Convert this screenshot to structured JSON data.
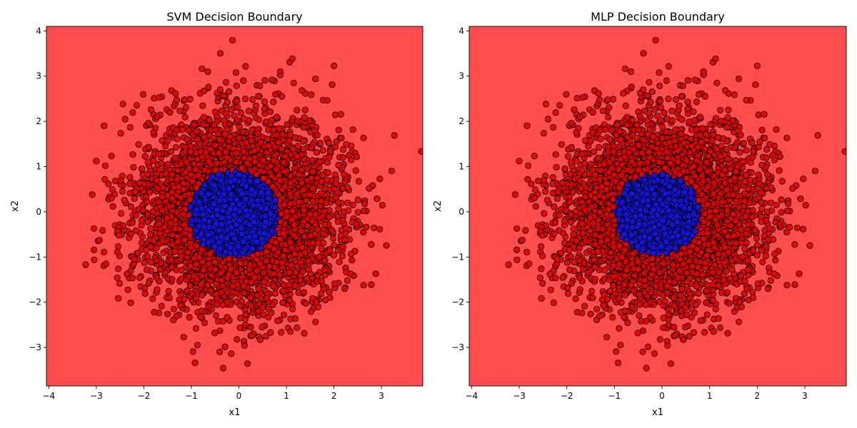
{
  "chart_data": [
    {
      "type": "scatter",
      "title": "SVM Decision Boundary",
      "xlabel": "x1",
      "ylabel": "x2",
      "xlim": [
        -4.05,
        3.87
      ],
      "ylim": [
        -3.85,
        4.1
      ],
      "xticks": [
        -4,
        -3,
        -2,
        -1,
        0,
        1,
        2,
        3
      ],
      "yticks": [
        -3,
        -2,
        -1,
        0,
        1,
        2,
        3,
        4
      ],
      "grid": false,
      "colors": {
        "outer_region": "#ff4d4d",
        "inner_region": "#0000ff",
        "outer_point": "#e60000",
        "inner_point": "#1515e0",
        "edge": "#000000"
      },
      "decision_region": {
        "inner_class": "blue",
        "center": [
          -0.1,
          -0.05
        ],
        "approx_radius": 1.0
      },
      "distribution": {
        "kind": "gaussian",
        "mean": [
          0,
          0
        ],
        "std": 1.0,
        "approx_points": 5000
      },
      "annotated_points": {
        "x": [
          0.87,
          2.88,
          -3.05,
          -3.05,
          -2.68,
          -2.65,
          -2.6,
          -2.55,
          -2.52,
          2.65,
          2.62,
          2.48,
          2.38,
          2.35,
          2.32,
          0.45,
          -0.4,
          0.25,
          -1.5,
          -1.78,
          1.82,
          -2.2,
          1.65,
          -1.45,
          2.1
        ],
        "y": [
          3.1,
          -1.37,
          -0.37,
          -0.84,
          0.3,
          0.12,
          0.68,
          -0.44,
          -0.52,
          0.18,
          -0.45,
          1.22,
          -1.07,
          -1.37,
          1.25,
          -2.83,
          -2.63,
          -2.55,
          -2.26,
          -2.22,
          -1.95,
          -1.05,
          1.7,
          2.2,
          1.81
        ]
      }
    },
    {
      "type": "scatter",
      "title": "MLP Decision Boundary",
      "xlabel": "x1",
      "ylabel": "x2",
      "xlim": [
        -4.05,
        3.87
      ],
      "ylim": [
        -3.85,
        4.1
      ],
      "xticks": [
        -4,
        -3,
        -2,
        -1,
        0,
        1,
        2,
        3
      ],
      "yticks": [
        -3,
        -2,
        -1,
        0,
        1,
        2,
        3,
        4
      ],
      "grid": false,
      "colors": {
        "outer_region": "#ff4d4d",
        "inner_region": "#0000ff",
        "outer_point": "#e60000",
        "inner_point": "#1515e0",
        "edge": "#000000"
      },
      "decision_region": {
        "inner_class": "blue",
        "center": [
          -0.1,
          -0.05
        ],
        "approx_radius": 0.95
      },
      "distribution": {
        "kind": "gaussian",
        "mean": [
          0,
          0
        ],
        "std": 1.0,
        "approx_points": 5000
      },
      "annotated_points": {
        "x": [
          0.87,
          2.88,
          -3.05,
          -3.05,
          -2.68,
          -2.65,
          -2.6,
          -2.55,
          -2.52,
          2.65,
          2.62,
          2.48,
          2.38,
          2.35,
          2.32,
          0.45,
          -0.4,
          0.25,
          -1.5,
          -1.78,
          1.82,
          -2.2,
          1.65,
          -1.45,
          2.1
        ],
        "y": [
          3.1,
          -1.37,
          -0.37,
          -0.84,
          0.3,
          0.12,
          0.68,
          -0.44,
          -0.52,
          0.18,
          -0.45,
          1.22,
          -1.07,
          -1.37,
          1.25,
          -2.83,
          -2.63,
          -2.55,
          -2.26,
          -2.22,
          -1.95,
          -1.05,
          1.7,
          2.2,
          1.81
        ]
      }
    }
  ]
}
